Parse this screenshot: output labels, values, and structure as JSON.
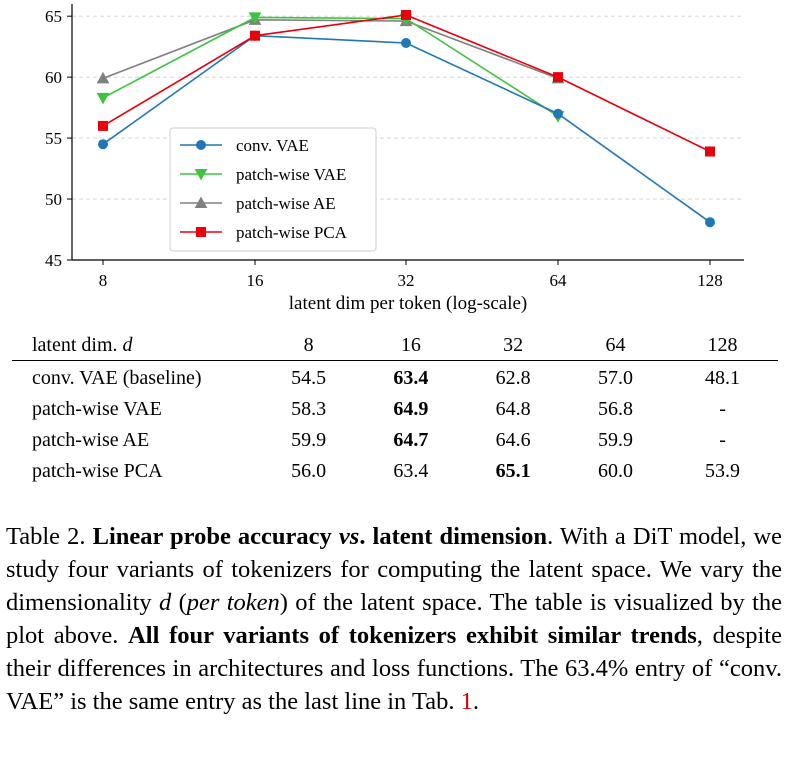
{
  "chart_data": {
    "type": "line",
    "x": [
      8,
      16,
      32,
      64,
      128
    ],
    "tick_labels_x": [
      "8",
      "16",
      "32",
      "64",
      "128"
    ],
    "xscale": "log",
    "xlabel": "latent dim per token (log-scale)",
    "ylabel": "",
    "ylim": [
      45,
      66
    ],
    "yticks": [
      45,
      50,
      55,
      60,
      65
    ],
    "grid": "horizontal dashed",
    "legend_position": "center-left",
    "series": [
      {
        "name": "conv. VAE",
        "color": "#1f77b4",
        "marker": "circle",
        "values": [
          54.5,
          63.4,
          62.8,
          57.0,
          48.1
        ]
      },
      {
        "name": "patch-wise VAE",
        "color": "#3ec43e",
        "marker": "triangle-down",
        "values": [
          58.3,
          64.9,
          64.8,
          56.8,
          null
        ]
      },
      {
        "name": "patch-wise AE",
        "color": "#808080",
        "marker": "triangle-up",
        "values": [
          59.9,
          64.7,
          64.6,
          59.9,
          null
        ]
      },
      {
        "name": "patch-wise PCA",
        "color": "#e8000b",
        "marker": "square",
        "values": [
          56.0,
          63.4,
          65.1,
          60.0,
          53.9
        ]
      }
    ]
  },
  "table": {
    "header_label": "latent dim.",
    "header_var": "d",
    "columns": [
      "8",
      "16",
      "32",
      "64",
      "128"
    ],
    "rows": [
      {
        "label": "conv. VAE (baseline)",
        "cells": [
          "54.5",
          "63.4",
          "62.8",
          "57.0",
          "48.1"
        ],
        "bold_index": 1
      },
      {
        "label": "patch-wise VAE",
        "cells": [
          "58.3",
          "64.9",
          "64.8",
          "56.8",
          "-"
        ],
        "bold_index": 1
      },
      {
        "label": "patch-wise AE",
        "cells": [
          "59.9",
          "64.7",
          "64.6",
          "59.9",
          "-"
        ],
        "bold_index": 1
      },
      {
        "label": "patch-wise PCA",
        "cells": [
          "56.0",
          "63.4",
          "65.1",
          "60.0",
          "53.9"
        ],
        "bold_index": 2
      }
    ]
  },
  "caption": {
    "prefix": "Table 2.",
    "title_a": "Linear probe accuracy",
    "title_vs": "vs",
    "title_b": ". latent dimension",
    "text1": ".  With a DiT model, we study four variants of tokenizers for computing the latent space. We vary the dimensionality",
    "var_d": "d",
    "text2": "(",
    "per_token": "per token",
    "text3": ") of the latent space. The table is visualized by the plot above.",
    "bold_sentence": "All four variants of tokenizers exhibit similar trends",
    "text4": ", despite their differences in architectures and loss functions. The 63.4% entry of “conv. VAE” is the same entry as the last line in Tab.",
    "ref": "1",
    "text5": "."
  }
}
